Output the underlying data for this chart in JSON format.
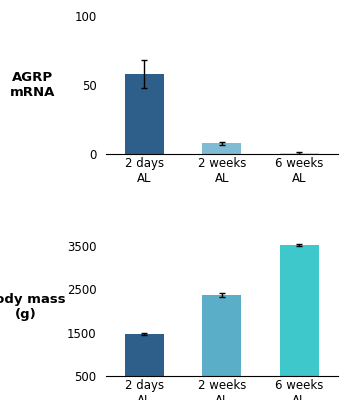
{
  "top": {
    "ylabel": "AGRP\nmRNA",
    "categories": [
      "2 days\nAL",
      "2 weeks\nAL",
      "6 weeks\nAL"
    ],
    "values": [
      58,
      8,
      1.0
    ],
    "errors": [
      10,
      1.2,
      0.5
    ],
    "colors": [
      "#2e5f8a",
      "#7fbcd4",
      "#c8e4ec"
    ],
    "ylim": [
      0,
      100
    ],
    "yticks": [
      0,
      50,
      100
    ]
  },
  "bottom": {
    "ylabel": "Body mass\n(g)",
    "categories": [
      "2 days\nAL",
      "2 weeks\nAL",
      "6 weeks\nAL"
    ],
    "values": [
      1475,
      2375,
      3525
    ],
    "errors": [
      30,
      40,
      20
    ],
    "colors": [
      "#2e5f8a",
      "#5aaec8",
      "#3ec8cc"
    ],
    "ylim": [
      500,
      3700
    ],
    "yticks": [
      500,
      1500,
      2500,
      3500
    ]
  },
  "background_color": "#ffffff",
  "bar_width": 0.5,
  "label_fontsize": 8.5,
  "tick_fontsize": 8.5,
  "ylabel_fontsize": 9.5
}
